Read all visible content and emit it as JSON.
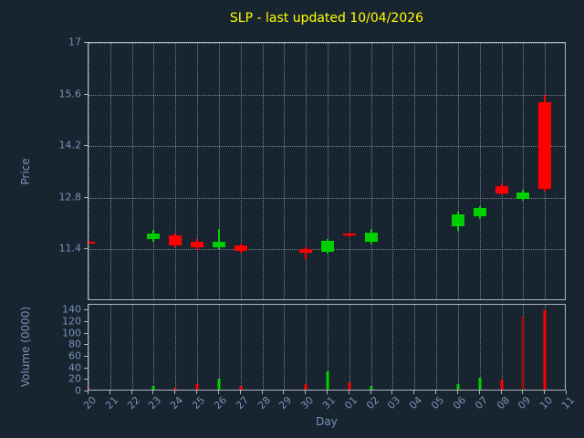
{
  "chart_data": {
    "type": "candlestick",
    "title": "SLP - last updated 10/04/2026",
    "xlabel": "Day",
    "ylabel_price": "Price",
    "ylabel_volume": "Volume (0000)",
    "grid": "dotted",
    "legend": "none",
    "x_ticklabels": [
      "20",
      "21",
      "22",
      "23",
      "24",
      "25",
      "26",
      "27",
      "28",
      "29",
      "30",
      "31",
      "01",
      "02",
      "03",
      "04",
      "05",
      "06",
      "07",
      "08",
      "09",
      "10",
      "11"
    ],
    "price_yticks": [
      17,
      15.6,
      14.2,
      12.8,
      11.4
    ],
    "price_ylim": [
      10.0,
      17.0
    ],
    "volume_yticks": [
      0,
      20,
      40,
      60,
      80,
      100,
      120,
      140
    ],
    "volume_ylim": [
      0,
      150
    ],
    "colors": {
      "background": "#18242f",
      "title": "#ffff00",
      "tick_label": "#7693b8",
      "spine": "#aeb6bd",
      "grid": "#9fb0bd",
      "up": "#00cf00",
      "down": "#ff0000",
      "volume_dark_down": "#991111"
    },
    "candles": [
      {
        "day": "20",
        "i": 0,
        "open": 11.62,
        "high": 11.65,
        "low": 11.54,
        "close": 11.57,
        "volume": 6,
        "color": "red",
        "vol_color": "red"
      },
      {
        "day": "23",
        "i": 3,
        "open": 11.68,
        "high": 11.92,
        "low": 11.6,
        "close": 11.82,
        "volume": 10,
        "color": "green",
        "vol_color": "green"
      },
      {
        "day": "24",
        "i": 4,
        "open": 11.78,
        "high": 11.83,
        "low": 11.47,
        "close": 11.52,
        "volume": 7,
        "color": "red",
        "vol_color": "red"
      },
      {
        "day": "25",
        "i": 5,
        "open": 11.62,
        "high": 11.68,
        "low": 11.38,
        "close": 11.45,
        "volume": 12,
        "color": "red",
        "vol_color": "red"
      },
      {
        "day": "26",
        "i": 6,
        "open": 11.45,
        "high": 11.95,
        "low": 11.4,
        "close": 11.62,
        "volume": 22,
        "color": "green",
        "vol_color": "green"
      },
      {
        "day": "27",
        "i": 7,
        "open": 11.52,
        "high": 11.56,
        "low": 11.3,
        "close": 11.35,
        "volume": 9,
        "color": "red",
        "vol_color": "red"
      },
      {
        "day": "30",
        "i": 10,
        "open": 11.42,
        "high": 11.46,
        "low": 11.14,
        "close": 11.32,
        "volume": 12,
        "color": "red",
        "vol_color": "red"
      },
      {
        "day": "31",
        "i": 11,
        "open": 11.33,
        "high": 11.68,
        "low": 11.28,
        "close": 11.63,
        "volume": 34,
        "color": "green",
        "vol_color": "green"
      },
      {
        "day": "01",
        "i": 12,
        "open": 11.82,
        "high": 11.86,
        "low": 11.74,
        "close": 11.78,
        "volume": 16,
        "color": "red",
        "vol_color": "red"
      },
      {
        "day": "02",
        "i": 13,
        "open": 11.62,
        "high": 11.96,
        "low": 11.55,
        "close": 11.85,
        "volume": 9,
        "color": "green",
        "vol_color": "green"
      },
      {
        "day": "06",
        "i": 17,
        "open": 12.02,
        "high": 12.42,
        "low": 11.9,
        "close": 12.35,
        "volume": 12,
        "color": "green",
        "vol_color": "green"
      },
      {
        "day": "07",
        "i": 18,
        "open": 12.3,
        "high": 12.58,
        "low": 12.22,
        "close": 12.52,
        "volume": 24,
        "color": "green",
        "vol_color": "green"
      },
      {
        "day": "08",
        "i": 19,
        "open": 13.12,
        "high": 13.18,
        "low": 12.86,
        "close": 12.92,
        "volume": 20,
        "color": "red",
        "vol_color": "red"
      },
      {
        "day": "09",
        "i": 20,
        "open": 12.78,
        "high": 13.02,
        "low": 12.72,
        "close": 12.95,
        "volume": 130,
        "color": "green",
        "vol_color": "darkred"
      },
      {
        "day": "10",
        "i": 21,
        "open": 15.38,
        "high": 15.58,
        "low": 12.96,
        "close": 13.05,
        "volume": 140,
        "color": "red",
        "vol_color": "red"
      }
    ]
  }
}
